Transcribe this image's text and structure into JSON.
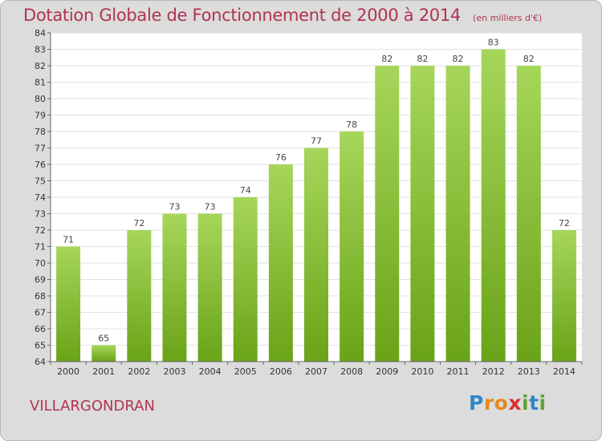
{
  "title": "Dotation Globale de Fonctionnement de 2000 à 2014",
  "unit_note": "(en milliers d'€)",
  "commune": "VILLARGONDRAN",
  "logo": {
    "letters": [
      "P",
      "r",
      "o",
      "x",
      "i",
      "t",
      "i"
    ],
    "colors": [
      "#2f86c9",
      "#e38a1f",
      "#e38a1f",
      "#d9312f",
      "#5aa631",
      "#2f86c9",
      "#5aa631"
    ]
  },
  "colors": {
    "bar_light": "#a6d65a",
    "bar_dark": "#6aa318",
    "title": "#b2334f",
    "background": "#dcdcdc"
  },
  "chart_data": {
    "type": "bar",
    "title": "Dotation Globale de Fonctionnement de 2000 à 2014",
    "categories": [
      "2000",
      "2001",
      "2002",
      "2003",
      "2004",
      "2005",
      "2006",
      "2007",
      "2008",
      "2009",
      "2010",
      "2011",
      "2012",
      "2013",
      "2014"
    ],
    "values": [
      71,
      65,
      72,
      73,
      73,
      74,
      76,
      77,
      78,
      82,
      82,
      82,
      83,
      82,
      72
    ],
    "ylim": [
      64,
      84
    ],
    "yticks": [
      64,
      65,
      66,
      67,
      68,
      69,
      70,
      71,
      72,
      73,
      74,
      75,
      76,
      77,
      78,
      79,
      80,
      81,
      82,
      83,
      84
    ],
    "xlabel": "",
    "ylabel": "",
    "grid": true,
    "data_labels": true
  }
}
